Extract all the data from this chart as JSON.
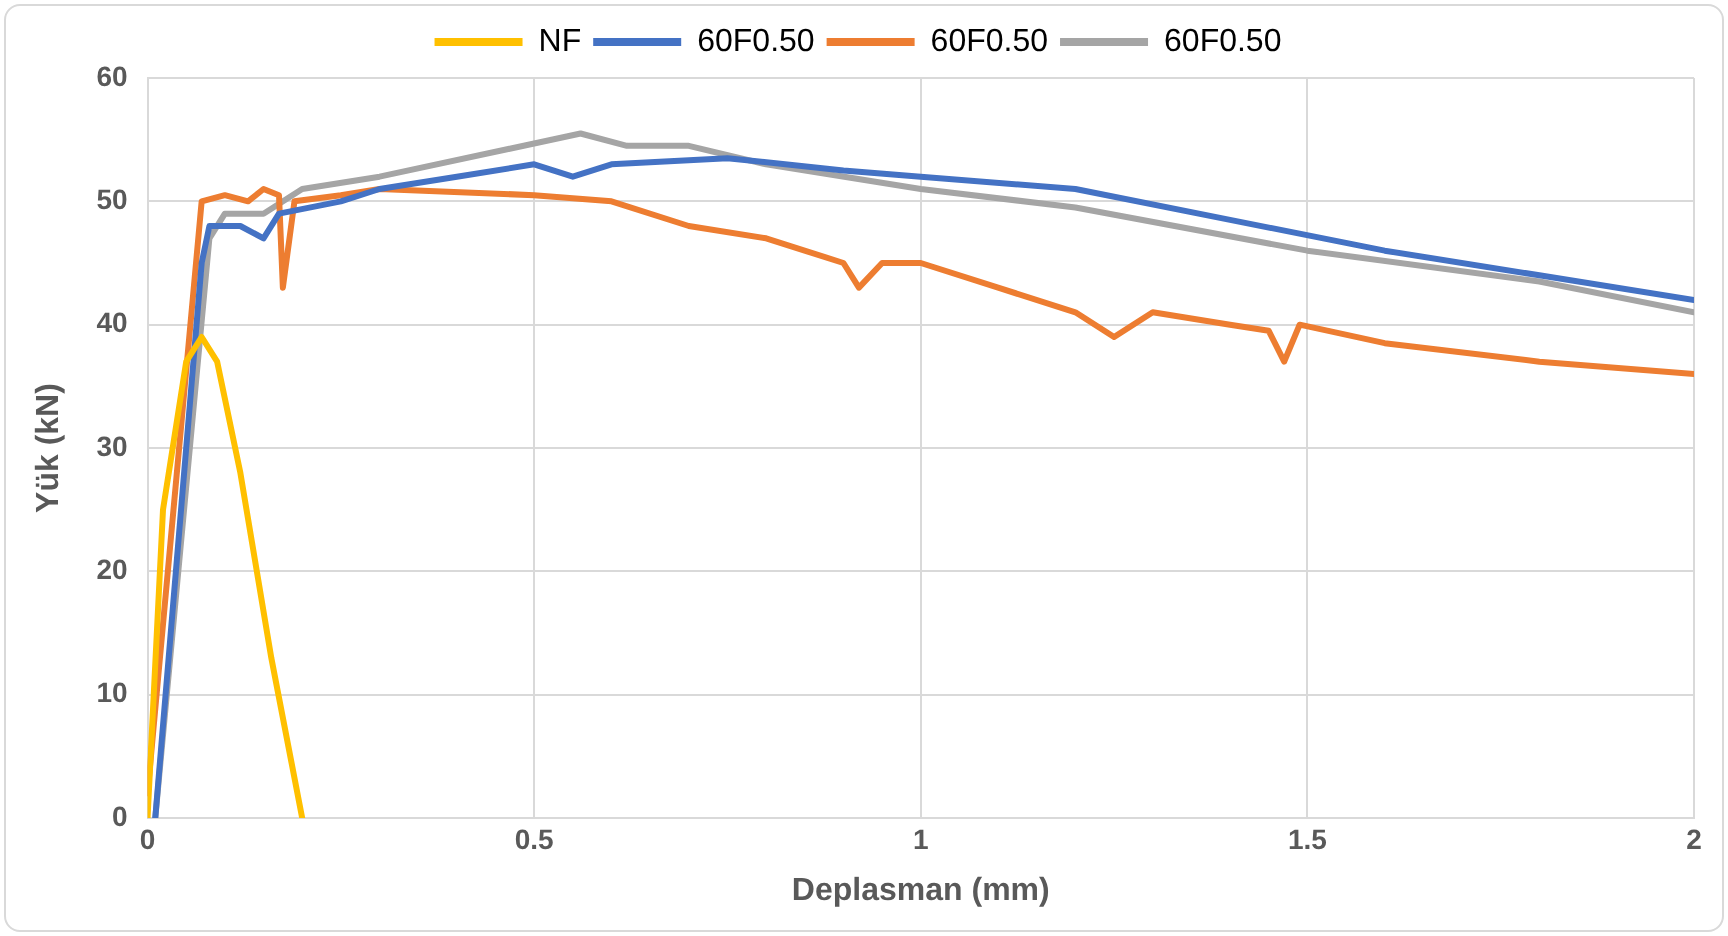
{
  "chart_data": {
    "type": "line",
    "xlabel": "Deplasman (mm)",
    "ylabel": "Yük (kN)",
    "xlim": [
      0,
      2
    ],
    "xticks": [
      0,
      0.5,
      1,
      1.5,
      2
    ],
    "ylim": [
      0,
      60
    ],
    "yticks": [
      0,
      10,
      20,
      30,
      40,
      50,
      60
    ],
    "grid": true,
    "legend": "top",
    "marker": "none",
    "line_style": "solid",
    "series": [
      {
        "name": "NF",
        "color": "#ffc000",
        "x": [
          0,
          0.02,
          0.05,
          0.07,
          0.09,
          0.12,
          0.16,
          0.2
        ],
        "values": [
          0,
          25,
          37,
          39,
          37,
          28,
          13,
          0
        ]
      },
      {
        "name": "60F0.50",
        "color": "#4472c4",
        "x": [
          0.01,
          0.07,
          0.08,
          0.12,
          0.15,
          0.17,
          0.25,
          0.3,
          0.4,
          0.5,
          0.55,
          0.6,
          0.75,
          0.9,
          1.0,
          1.2,
          1.4,
          1.6,
          1.8,
          2.0
        ],
        "values": [
          0,
          45,
          48,
          48,
          47,
          49,
          50,
          51,
          52,
          53,
          52,
          53,
          53.5,
          52.5,
          52,
          51,
          48.5,
          46,
          44,
          42
        ]
      },
      {
        "name": "60F0.50",
        "color": "#ed7d31",
        "x": [
          0,
          0.07,
          0.1,
          0.13,
          0.15,
          0.17,
          0.175,
          0.19,
          0.25,
          0.3,
          0.5,
          0.6,
          0.7,
          0.8,
          0.9,
          0.92,
          0.95,
          1.0,
          1.1,
          1.2,
          1.25,
          1.3,
          1.4,
          1.45,
          1.47,
          1.49,
          1.6,
          1.8,
          2.0
        ],
        "values": [
          2,
          50,
          50.5,
          50,
          51,
          50.5,
          43,
          50,
          50.5,
          51,
          50.5,
          50,
          48,
          47,
          45,
          43,
          45,
          45,
          43,
          41,
          39,
          41,
          40,
          39.5,
          37,
          40,
          38.5,
          37,
          36
        ]
      },
      {
        "name": "60F0.50",
        "color": "#a5a5a5",
        "x": [
          0.01,
          0.08,
          0.1,
          0.15,
          0.2,
          0.3,
          0.56,
          0.62,
          0.7,
          0.8,
          1.0,
          1.2,
          1.5,
          1.8,
          2.0
        ],
        "values": [
          0,
          47,
          49,
          49,
          51,
          52,
          55.5,
          54.5,
          54.5,
          53,
          51,
          49.5,
          46,
          43.5,
          41
        ]
      }
    ]
  }
}
